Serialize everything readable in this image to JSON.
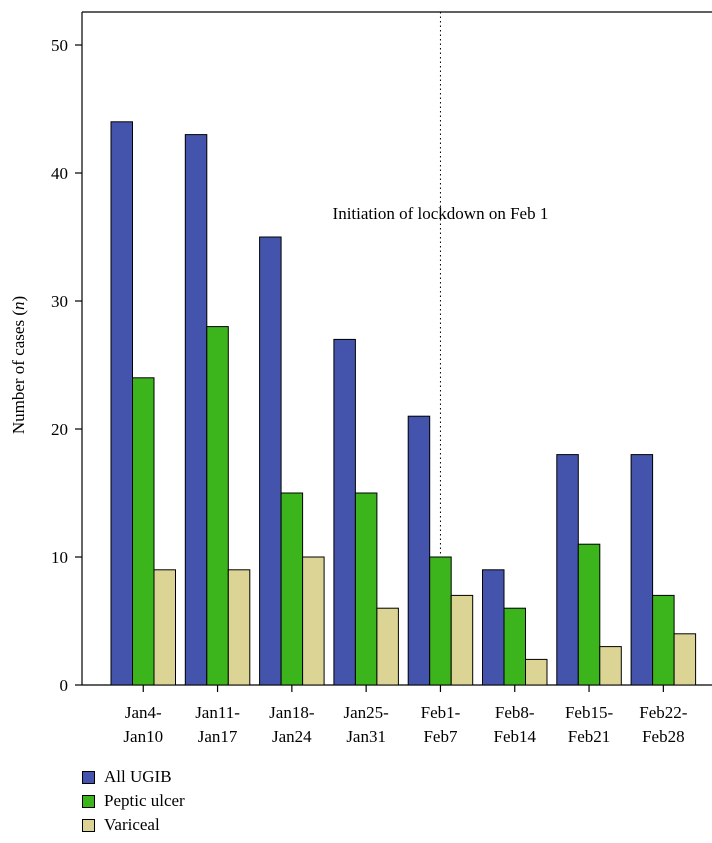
{
  "chart_data": {
    "type": "bar",
    "categories": [
      [
        "Jan4-",
        "Jan10"
      ],
      [
        "Jan11-",
        "Jan17"
      ],
      [
        "Jan18-",
        "Jan24"
      ],
      [
        "Jan25-",
        "Jan31"
      ],
      [
        "Feb1-",
        "Feb7"
      ],
      [
        "Feb8-",
        "Feb14"
      ],
      [
        "Feb15-",
        "Feb21"
      ],
      [
        "Feb22-",
        "Feb28"
      ]
    ],
    "series": [
      {
        "name": "All UGIB",
        "color": "#4454ac",
        "values": [
          44,
          43,
          35,
          27,
          21,
          9,
          18,
          18
        ]
      },
      {
        "name": "Peptic ulcer",
        "color": "#3cb41c",
        "values": [
          24,
          28,
          15,
          15,
          10,
          6,
          11,
          7
        ]
      },
      {
        "name": "Variceal",
        "color": "#dcd494",
        "values": [
          9,
          9,
          10,
          6,
          7,
          2,
          3,
          4
        ]
      }
    ],
    "ylabel_parts": [
      "Number of cases (",
      "n",
      ")"
    ],
    "xlabel": "",
    "ylim": [
      0,
      50
    ],
    "yticks": [
      0,
      10,
      20,
      30,
      40,
      50
    ],
    "annotation": {
      "text": "Initiation of lockdown on Feb 1",
      "at_category_index": 4
    },
    "grid": false,
    "legend_position": "bottom-left"
  }
}
